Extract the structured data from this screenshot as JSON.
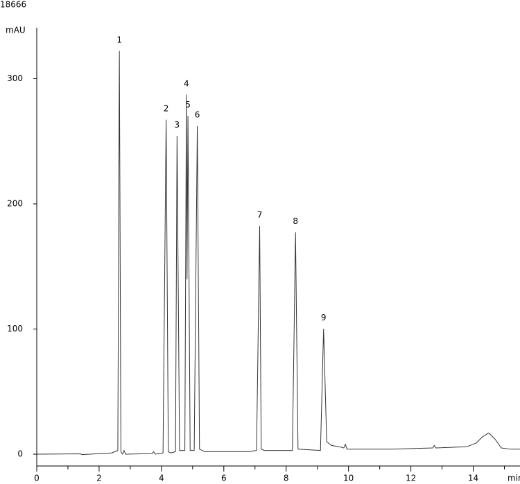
{
  "chart_data": {
    "type": "line",
    "header": "18666",
    "ylabel": "mAU",
    "xlabel": "min",
    "x": [
      0,
      1.4,
      1.45,
      2.4,
      2.6,
      2.65,
      2.7,
      2.75,
      2.8,
      2.85,
      3.7,
      3.75,
      3.8,
      4.05,
      4.15,
      4.22,
      4.3,
      4.45,
      4.5,
      4.58,
      4.75,
      4.8,
      4.82,
      4.85,
      4.92,
      5.05,
      5.15,
      5.22,
      5.4,
      6.8,
      7.05,
      7.15,
      7.2,
      7.3,
      8.2,
      8.3,
      8.38,
      9.1,
      9.2,
      9.3,
      9.45,
      9.7,
      9.85,
      9.9,
      9.95,
      11.4,
      12.7,
      12.75,
      12.8,
      13.8,
      14.1,
      14.3,
      14.5,
      14.7,
      14.9,
      15.2,
      15.5
    ],
    "series": [
      {
        "color": "#333333",
        "values": [
          0,
          0.3,
          -0.3,
          1,
          3,
          322,
          2,
          0,
          3,
          0,
          0.5,
          2,
          0,
          1,
          267,
          2,
          1,
          2,
          254,
          3,
          3,
          287,
          140,
          270,
          3,
          3,
          262,
          4,
          2,
          2,
          3,
          182,
          4,
          3,
          3,
          177,
          4,
          3,
          100,
          10,
          7,
          6,
          5,
          8,
          4,
          4,
          5,
          7,
          5,
          6,
          9,
          14,
          17,
          12,
          5,
          4,
          4
        ]
      }
    ],
    "peaks": [
      {
        "label": "1",
        "x": 2.65,
        "y": 322
      },
      {
        "label": "2",
        "x": 4.15,
        "y": 267
      },
      {
        "label": "3",
        "x": 4.5,
        "y": 254
      },
      {
        "label": "4",
        "x": 4.8,
        "y": 287
      },
      {
        "label": "5",
        "x": 4.85,
        "y": 270
      },
      {
        "label": "6",
        "x": 5.15,
        "y": 262
      },
      {
        "label": "7",
        "x": 7.15,
        "y": 182
      },
      {
        "label": "8",
        "x": 8.3,
        "y": 177
      },
      {
        "label": "9",
        "x": 9.2,
        "y": 100
      }
    ],
    "xlim": [
      0,
      15.5
    ],
    "ylim": [
      -9.4,
      340.7
    ],
    "xticks": [
      0,
      2,
      4,
      6,
      8,
      10,
      12,
      14
    ],
    "xminorticks": [
      1,
      3,
      5,
      7,
      9,
      11,
      13,
      15
    ],
    "yticks": [
      0,
      100,
      200,
      300
    ]
  }
}
